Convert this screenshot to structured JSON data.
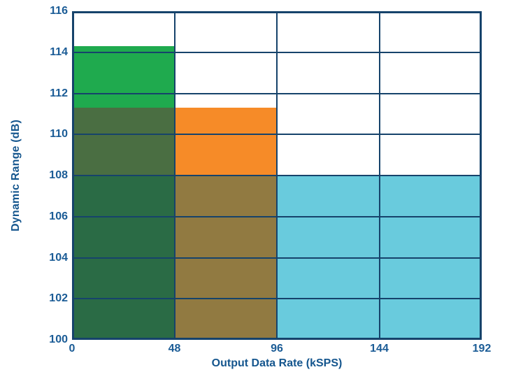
{
  "axes": {
    "y_label": "Dynamic Range (dB)",
    "x_label": "Output Data Rate (kSPS)"
  },
  "colors": {
    "line_navy": "#16436b",
    "tick_text": "#1b5c96",
    "title_text": "#15568e",
    "background": "#ffffff",
    "green_bright": "#1faa4e",
    "green_mid": "#4a6e42",
    "green_dark": "#2a6b45",
    "orange": "#f68b28",
    "olive": "#917a41",
    "blue": "#69cbdd"
  },
  "chart_data": {
    "type": "bar",
    "title": "",
    "xlabel": "Output Data Rate (kSPS)",
    "ylabel": "Dynamic Range (dB)",
    "xlim": [
      0,
      192
    ],
    "ylim": [
      100,
      116
    ],
    "x_ticks": [
      0,
      48,
      96,
      144,
      192
    ],
    "y_ticks": [
      100,
      102,
      104,
      106,
      108,
      110,
      112,
      114,
      116
    ],
    "grid": true,
    "legend": false,
    "series": [
      {
        "name": "green",
        "x_range": [
          0,
          48
        ],
        "dynamic_range_db": 114.3,
        "color": "#1faa4e"
      },
      {
        "name": "orange",
        "x_range": [
          0,
          96
        ],
        "dynamic_range_db": 111.3,
        "color": "#f68b28"
      },
      {
        "name": "blue",
        "x_range": [
          0,
          192
        ],
        "dynamic_range_db": 108,
        "color": "#69cbdd"
      }
    ],
    "regions": [
      {
        "x0": 0,
        "x1": 48,
        "y0": 111.3,
        "y1": 114.3,
        "color_key": "green_bright"
      },
      {
        "x0": 0,
        "x1": 48,
        "y0": 108,
        "y1": 111.3,
        "color_key": "green_mid"
      },
      {
        "x0": 0,
        "x1": 48,
        "y0": 100,
        "y1": 108,
        "color_key": "green_dark"
      },
      {
        "x0": 48,
        "x1": 96,
        "y0": 108,
        "y1": 111.3,
        "color_key": "orange"
      },
      {
        "x0": 48,
        "x1": 96,
        "y0": 100,
        "y1": 108,
        "color_key": "olive"
      },
      {
        "x0": 96,
        "x1": 192,
        "y0": 100,
        "y1": 108,
        "color_key": "blue"
      }
    ]
  }
}
